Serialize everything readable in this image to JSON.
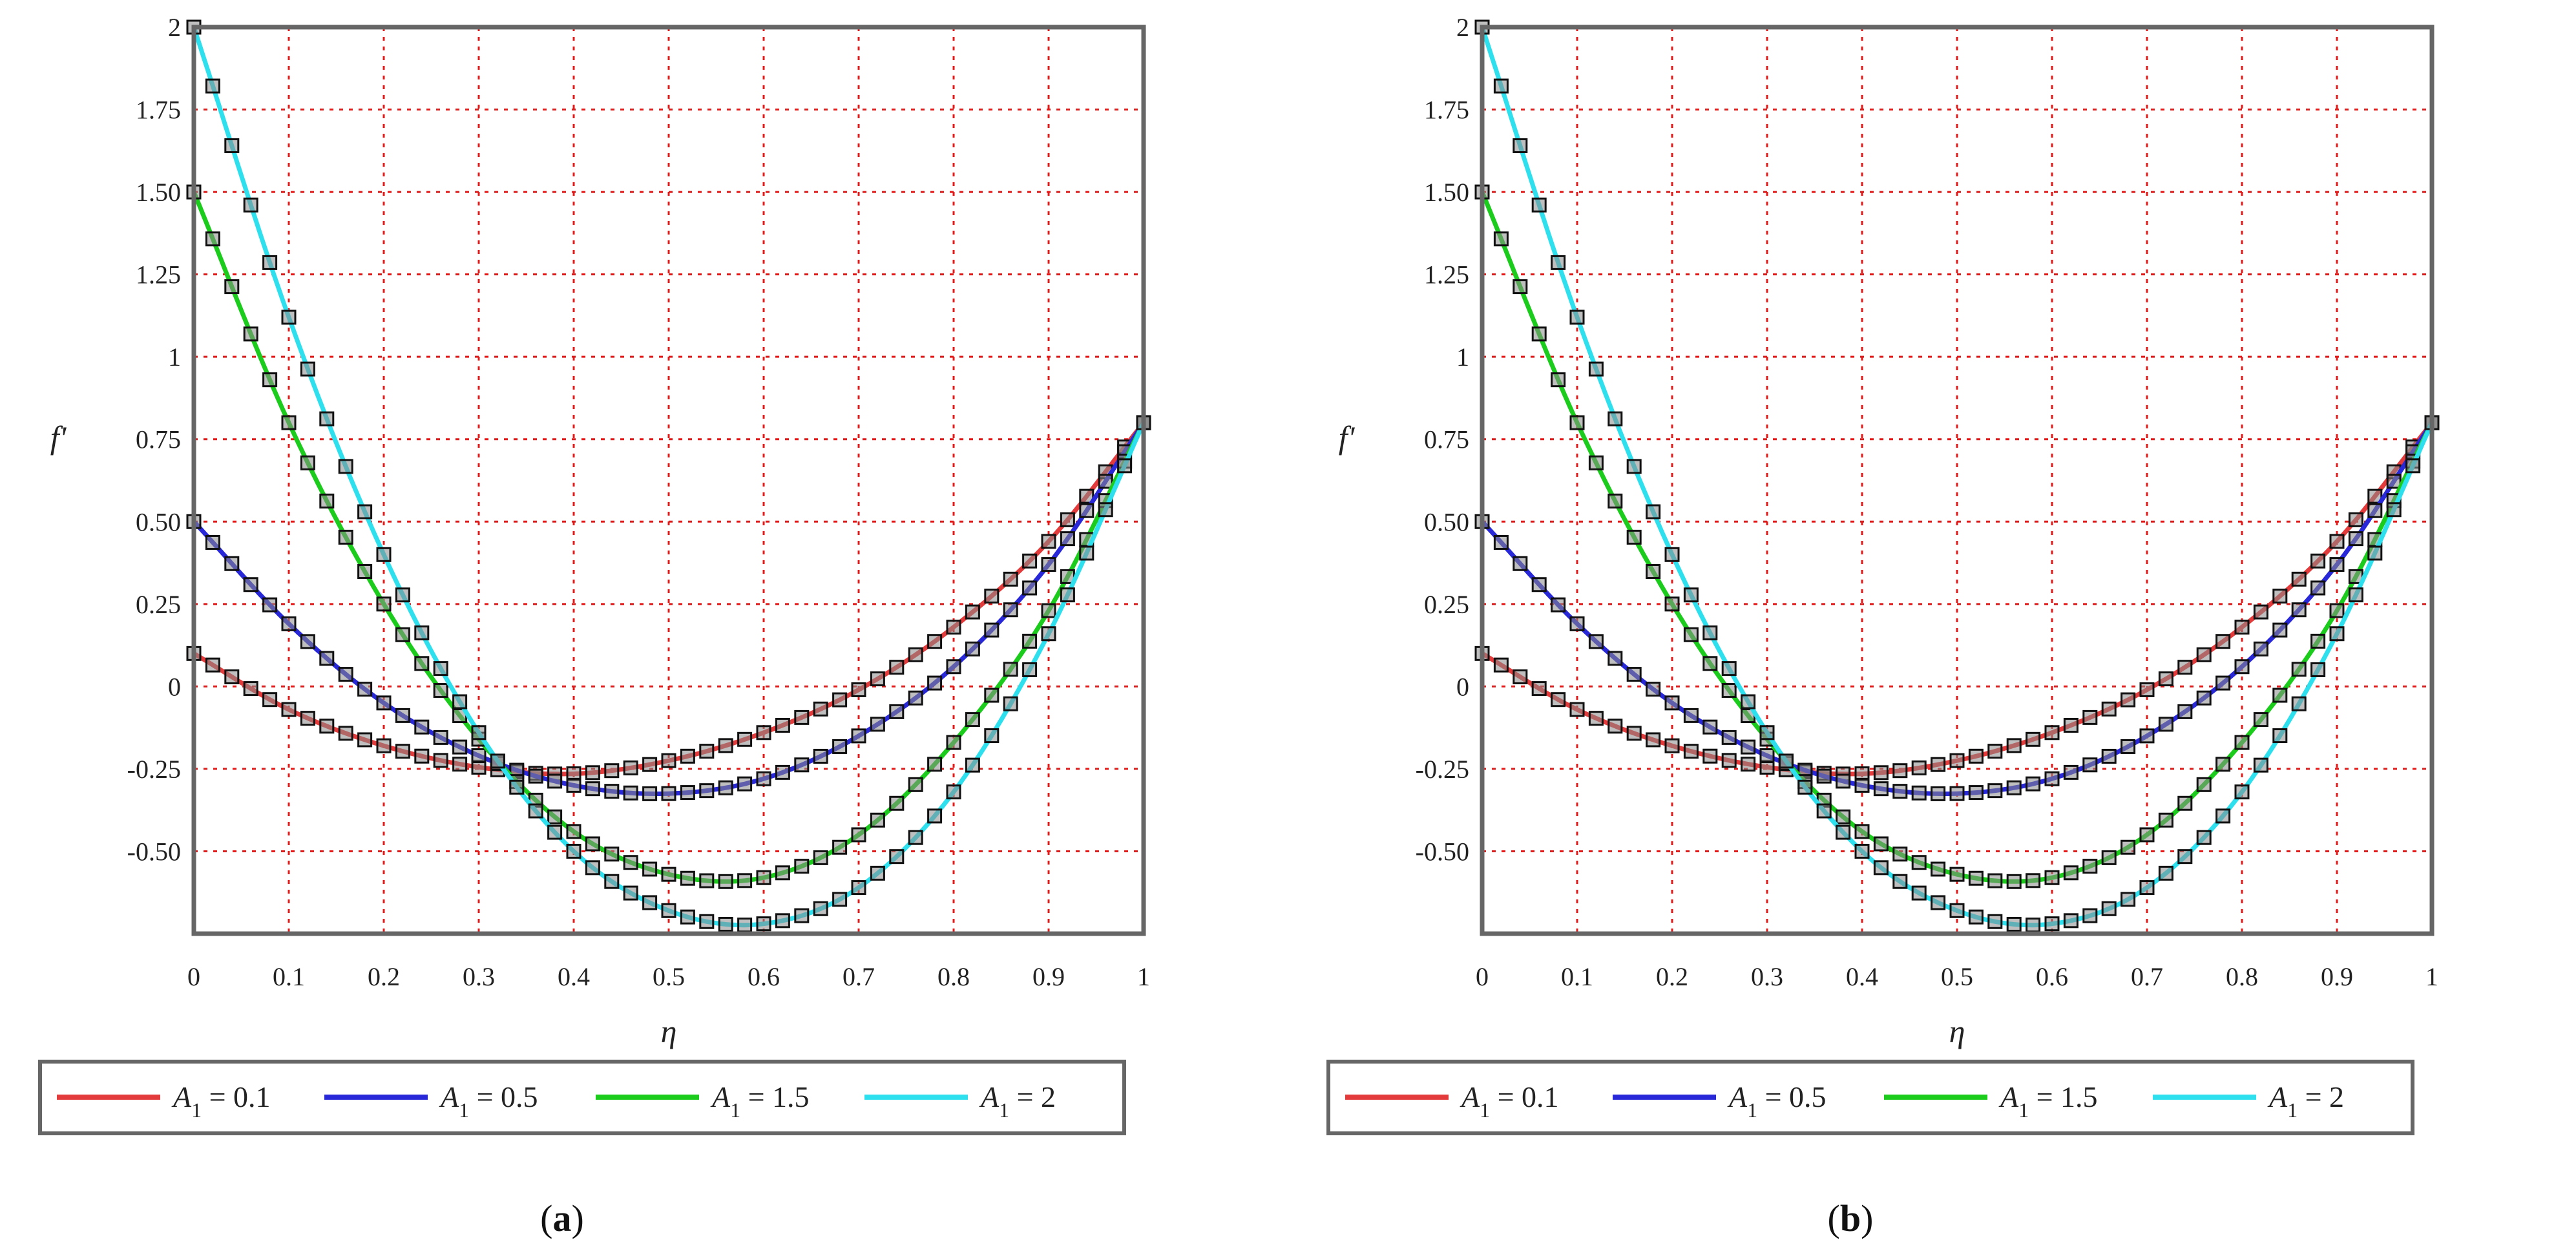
{
  "chart_data": [
    {
      "type": "line",
      "panel_label": "a",
      "xlabel": "η",
      "ylabel": "f'",
      "xlim": [
        0,
        1
      ],
      "ylim": [
        -0.75,
        2
      ],
      "x_ticks": [
        "0",
        "0.1",
        "0.2",
        "0.3",
        "0.4",
        "0.5",
        "0.6",
        "0.7",
        "0.8",
        "0.9",
        "1"
      ],
      "y_ticks": [
        "2",
        "1.75",
        "1.50",
        "1.25",
        "1",
        "0.75",
        "0.50",
        "0.25",
        "0",
        "-0.25",
        "-0.50"
      ],
      "grid": true,
      "legend_position": "bottom",
      "x": [
        0,
        0.1,
        0.2,
        0.3,
        0.4,
        0.5,
        0.6,
        0.7,
        0.8,
        0.9,
        1.0
      ],
      "series": [
        {
          "name": "A1 = 0.1",
          "legend": {
            "var": "A",
            "sub": "1",
            "rest": " = 0.1"
          },
          "color": "#e33b3b",
          "values": [
            0.1,
            -0.07,
            -0.18,
            -0.245,
            -0.265,
            -0.225,
            -0.14,
            -0.01,
            0.18,
            0.44,
            0.8
          ]
        },
        {
          "name": "A1 = 0.5",
          "legend": {
            "var": "A",
            "sub": "1",
            "rest": " = 0.5"
          },
          "color": "#2828d8",
          "values": [
            0.5,
            0.19,
            -0.05,
            -0.21,
            -0.3,
            -0.325,
            -0.28,
            -0.15,
            0.06,
            0.37,
            0.8
          ]
        },
        {
          "name": "A1 = 1.5",
          "legend": {
            "var": "A",
            "sub": "1",
            "rest": " = 1.5"
          },
          "color": "#1ccc1c",
          "values": [
            1.5,
            0.8,
            0.25,
            -0.16,
            -0.44,
            -0.57,
            -0.58,
            -0.45,
            -0.17,
            0.23,
            0.8
          ]
        },
        {
          "name": "A1 = 2",
          "legend": {
            "var": "A",
            "sub": "1",
            "rest": " = 2"
          },
          "color": "#2ee0ee",
          "values": [
            2.0,
            1.12,
            0.4,
            -0.14,
            -0.5,
            -0.68,
            -0.72,
            -0.61,
            -0.32,
            0.16,
            0.8
          ]
        }
      ]
    },
    {
      "type": "line",
      "panel_label": "b",
      "xlabel": "η",
      "ylabel": "f'",
      "xlim": [
        0,
        1
      ],
      "ylim": [
        -0.75,
        2
      ],
      "x_ticks": [
        "0",
        "0.1",
        "0.2",
        "0.3",
        "0.4",
        "0.5",
        "0.6",
        "0.7",
        "0.8",
        "0.9",
        "1"
      ],
      "y_ticks": [
        "2",
        "1.75",
        "1.50",
        "1.25",
        "1",
        "0.75",
        "0.50",
        "0.25",
        "0",
        "-0.25",
        "-0.50"
      ],
      "grid": true,
      "legend_position": "bottom",
      "x": [
        0,
        0.1,
        0.2,
        0.3,
        0.4,
        0.5,
        0.6,
        0.7,
        0.8,
        0.9,
        1.0
      ],
      "series": [
        {
          "name": "A1 = 0.1",
          "legend": {
            "var": "A",
            "sub": "1",
            "rest": " = 0.1"
          },
          "color": "#e33b3b",
          "values": [
            0.1,
            -0.07,
            -0.18,
            -0.245,
            -0.265,
            -0.225,
            -0.14,
            -0.01,
            0.18,
            0.44,
            0.8
          ]
        },
        {
          "name": "A1 = 0.5",
          "legend": {
            "var": "A",
            "sub": "1",
            "rest": " = 0.5"
          },
          "color": "#2828d8",
          "values": [
            0.5,
            0.19,
            -0.05,
            -0.21,
            -0.3,
            -0.325,
            -0.28,
            -0.15,
            0.06,
            0.37,
            0.8
          ]
        },
        {
          "name": "A1 = 1.5",
          "legend": {
            "var": "A",
            "sub": "1",
            "rest": " = 1.5"
          },
          "color": "#1ccc1c",
          "values": [
            1.5,
            0.8,
            0.25,
            -0.16,
            -0.44,
            -0.57,
            -0.58,
            -0.45,
            -0.17,
            0.23,
            0.8
          ]
        },
        {
          "name": "A1 = 2",
          "legend": {
            "var": "A",
            "sub": "1",
            "rest": " = 2"
          },
          "color": "#2ee0ee",
          "values": [
            2.0,
            1.12,
            0.4,
            -0.14,
            -0.5,
            -0.68,
            -0.72,
            -0.61,
            -0.32,
            0.16,
            0.8
          ]
        }
      ]
    }
  ]
}
